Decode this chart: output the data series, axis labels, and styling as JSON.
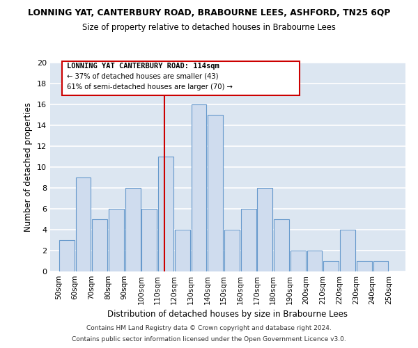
{
  "title": "LONNING YAT, CANTERBURY ROAD, BRABOURNE LEES, ASHFORD, TN25 6QP",
  "subtitle": "Size of property relative to detached houses in Brabourne Lees",
  "xlabel": "Distribution of detached houses by size in Brabourne Lees",
  "ylabel": "Number of detached properties",
  "bin_edges": [
    50,
    60,
    70,
    80,
    90,
    100,
    110,
    120,
    130,
    140,
    150,
    160,
    170,
    180,
    190,
    200,
    210,
    220,
    230,
    240,
    250
  ],
  "bar_heights": [
    3,
    9,
    5,
    6,
    8,
    6,
    11,
    4,
    16,
    15,
    4,
    6,
    8,
    5,
    2,
    2,
    1,
    4,
    1,
    1
  ],
  "bar_color": "#cfdcee",
  "bar_edge_color": "#6699cc",
  "reference_line_x": 114,
  "reference_line_color": "#cc0000",
  "ylim": [
    0,
    20
  ],
  "yticks": [
    0,
    2,
    4,
    6,
    8,
    10,
    12,
    14,
    16,
    18,
    20
  ],
  "grid_color": "#d0d8e8",
  "background_color": "#dce6f1",
  "annotation_title": "LONNING YAT CANTERBURY ROAD: 114sqm",
  "annotation_line1": "← 37% of detached houses are smaller (43)",
  "annotation_line2": "61% of semi-detached houses are larger (70) →",
  "footer_line1": "Contains HM Land Registry data © Crown copyright and database right 2024.",
  "footer_line2": "Contains public sector information licensed under the Open Government Licence v3.0."
}
